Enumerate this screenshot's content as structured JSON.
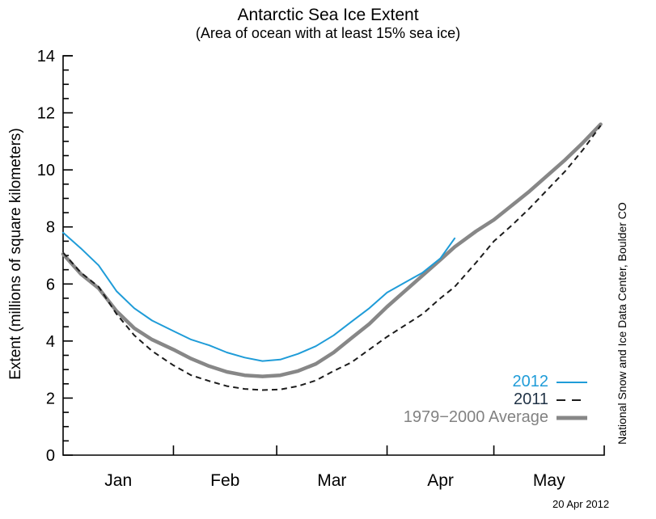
{
  "figure": {
    "title": "Antarctic Sea Ice Extent",
    "subtitle": "(Area of ocean with at least 15% sea ice)",
    "credit_vertical": "National Snow and Ice Data Center, Boulder CO",
    "date_stamp": "20 Apr 2012"
  },
  "legend": {
    "items": [
      {
        "label": "2012",
        "label_color": "#1f9cd8",
        "line_style": "solid-thin"
      },
      {
        "label": "2011",
        "label_color": "#223447",
        "line_style": "dashed"
      },
      {
        "label": "1979−2000 Average",
        "label_color": "#828282",
        "line_style": "solid-thick"
      }
    ]
  },
  "chart_data": {
    "type": "line",
    "title": "Antarctic Sea Ice Extent",
    "subtitle": "(Area of ocean with at least 15% sea ice)",
    "xlabel": "",
    "ylabel": "Extent (millions of square kilometers)",
    "x_unit": "days since Jan 1 (2012 calendar, leap year)",
    "x_axis": {
      "range_days": [
        0,
        152
      ],
      "month_boundaries_days": [
        0,
        31,
        60,
        91,
        121,
        152
      ],
      "month_labels": [
        "Jan",
        "Feb",
        "Mar",
        "Apr",
        "May"
      ],
      "tick_style": "inward, month boundaries only"
    },
    "y_axis": {
      "range": [
        0,
        14
      ],
      "major_tick_step": 2,
      "minor_tick_step": 0.5,
      "tick_labels": [
        "0",
        "2",
        "4",
        "6",
        "8",
        "10",
        "12",
        "14"
      ]
    },
    "grid": false,
    "legend_position": "inside lower right",
    "series": [
      {
        "name": "2012",
        "color": "#1f9cd8",
        "style": "solid",
        "stroke_width": 2,
        "ends_at": "20 Apr 2012",
        "points": [
          [
            0,
            7.8
          ],
          [
            5,
            7.25
          ],
          [
            10,
            6.65
          ],
          [
            15,
            5.75
          ],
          [
            20,
            5.15
          ],
          [
            25,
            4.72
          ],
          [
            31,
            4.35
          ],
          [
            36,
            4.05
          ],
          [
            41,
            3.85
          ],
          [
            46,
            3.6
          ],
          [
            51,
            3.42
          ],
          [
            56,
            3.3
          ],
          [
            61,
            3.35
          ],
          [
            66,
            3.55
          ],
          [
            71,
            3.82
          ],
          [
            76,
            4.2
          ],
          [
            81,
            4.68
          ],
          [
            86,
            5.15
          ],
          [
            91,
            5.7
          ],
          [
            96,
            6.05
          ],
          [
            101,
            6.4
          ],
          [
            106,
            6.9
          ],
          [
            110,
            7.6
          ]
        ]
      },
      {
        "name": "2011",
        "color": "#1c1c1c",
        "style": "dashed",
        "stroke_width": 2,
        "points": [
          [
            0,
            7.1
          ],
          [
            5,
            6.4
          ],
          [
            10,
            5.9
          ],
          [
            15,
            4.95
          ],
          [
            20,
            4.2
          ],
          [
            25,
            3.65
          ],
          [
            31,
            3.15
          ],
          [
            36,
            2.8
          ],
          [
            41,
            2.6
          ],
          [
            46,
            2.42
          ],
          [
            51,
            2.32
          ],
          [
            56,
            2.28
          ],
          [
            61,
            2.3
          ],
          [
            66,
            2.42
          ],
          [
            71,
            2.62
          ],
          [
            76,
            2.95
          ],
          [
            81,
            3.25
          ],
          [
            86,
            3.7
          ],
          [
            91,
            4.15
          ],
          [
            96,
            4.55
          ],
          [
            101,
            4.95
          ],
          [
            106,
            5.5
          ],
          [
            110,
            5.9
          ],
          [
            116,
            6.75
          ],
          [
            121,
            7.5
          ],
          [
            126,
            8.05
          ],
          [
            131,
            8.65
          ],
          [
            136,
            9.3
          ],
          [
            141,
            9.95
          ],
          [
            146,
            10.7
          ],
          [
            151,
            11.55
          ]
        ]
      },
      {
        "name": "1979−2000 Average",
        "color": "#878787",
        "style": "solid",
        "stroke_width": 4.5,
        "points": [
          [
            0,
            7.05
          ],
          [
            5,
            6.35
          ],
          [
            10,
            5.85
          ],
          [
            15,
            5.05
          ],
          [
            20,
            4.45
          ],
          [
            25,
            4.05
          ],
          [
            31,
            3.7
          ],
          [
            36,
            3.38
          ],
          [
            41,
            3.12
          ],
          [
            46,
            2.92
          ],
          [
            51,
            2.8
          ],
          [
            56,
            2.76
          ],
          [
            61,
            2.8
          ],
          [
            66,
            2.95
          ],
          [
            71,
            3.2
          ],
          [
            76,
            3.6
          ],
          [
            81,
            4.1
          ],
          [
            86,
            4.6
          ],
          [
            91,
            5.2
          ],
          [
            96,
            5.75
          ],
          [
            101,
            6.3
          ],
          [
            106,
            6.85
          ],
          [
            110,
            7.3
          ],
          [
            116,
            7.85
          ],
          [
            121,
            8.25
          ],
          [
            126,
            8.75
          ],
          [
            131,
            9.25
          ],
          [
            136,
            9.8
          ],
          [
            141,
            10.35
          ],
          [
            146,
            10.95
          ],
          [
            151,
            11.6
          ]
        ]
      }
    ]
  }
}
